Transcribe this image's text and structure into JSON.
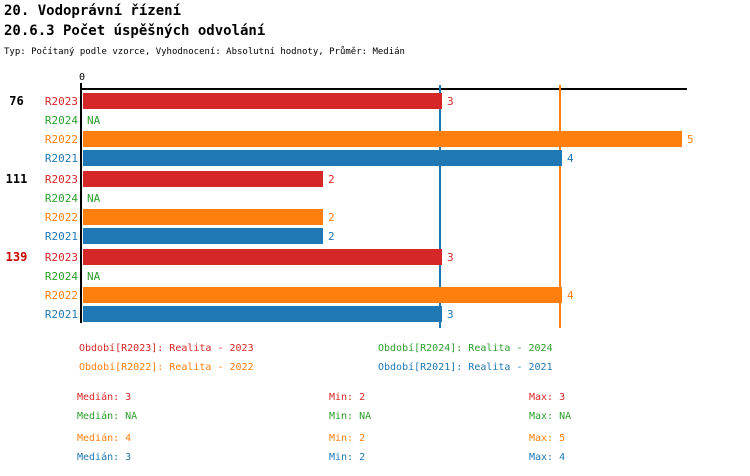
{
  "header": {
    "title": "20. Vodoprávní řízení",
    "subtitle": "20.6.3 Počet úspěšných odvolání",
    "meta": "Typ: Počítaný podle vzorce, Vyhodnocení: Absolutní hodnoty, Průměr: Medián"
  },
  "colors": {
    "R2023": "#D62728",
    "R2024": "#2CA02C",
    "R2022": "#FF7F0E",
    "R2021": "#1F77B4",
    "axis": "#000000",
    "group_label": "#000000",
    "group_label_highlight": "#CC0000"
  },
  "chart_data": {
    "type": "bar",
    "orientation": "horizontal",
    "xlim": [
      0,
      5
    ],
    "x_tick_labels": [
      "0"
    ],
    "grid": false,
    "series_names": [
      "R2023",
      "R2024",
      "R2022",
      "R2021"
    ],
    "groups": [
      {
        "label": "76",
        "highlight": false,
        "bars": [
          {
            "series": "R2023",
            "value": 3,
            "label": "3"
          },
          {
            "series": "R2024",
            "value": null,
            "label": "NA"
          },
          {
            "series": "R2022",
            "value": 5,
            "label": "5"
          },
          {
            "series": "R2021",
            "value": 4,
            "label": "4"
          }
        ]
      },
      {
        "label": "111",
        "highlight": false,
        "bars": [
          {
            "series": "R2023",
            "value": 2,
            "label": "2"
          },
          {
            "series": "R2024",
            "value": null,
            "label": "NA"
          },
          {
            "series": "R2022",
            "value": 2,
            "label": "2"
          },
          {
            "series": "R2021",
            "value": 2,
            "label": "2"
          }
        ]
      },
      {
        "label": "139",
        "highlight": true,
        "bars": [
          {
            "series": "R2023",
            "value": 3,
            "label": "3"
          },
          {
            "series": "R2024",
            "value": null,
            "label": "NA"
          },
          {
            "series": "R2022",
            "value": 4,
            "label": "4"
          },
          {
            "series": "R2021",
            "value": 3,
            "label": "3"
          }
        ]
      }
    ],
    "median_lines": [
      {
        "series": "R2021",
        "value": 3
      },
      {
        "series": "R2022",
        "value": 4
      }
    ]
  },
  "legend": {
    "items": [
      {
        "series": "R2023",
        "text": "Období[R2023]: Realita - 2023",
        "col": 0,
        "row": 0
      },
      {
        "series": "R2024",
        "text": "Období[R2024]: Realita - 2024",
        "col": 1,
        "row": 0
      },
      {
        "series": "R2022",
        "text": "Období[R2022]: Realita - 2022",
        "col": 0,
        "row": 1
      },
      {
        "series": "R2021",
        "text": "Období[R2021]: Realita - 2021",
        "col": 1,
        "row": 1
      }
    ]
  },
  "stats": {
    "rows": [
      {
        "series": "R2023",
        "median": "Medián: 3",
        "min": "Min: 2",
        "max": "Max: 3"
      },
      {
        "series": "R2024",
        "median": "Medián: NA",
        "min": "Min: NA",
        "max": "Max: NA"
      },
      {
        "series": "R2022",
        "median": "Medián: 4",
        "min": "Min: 2",
        "max": "Max: 5"
      },
      {
        "series": "R2021",
        "median": "Medián: 3",
        "min": "Min: 2",
        "max": "Max: 4"
      }
    ]
  }
}
